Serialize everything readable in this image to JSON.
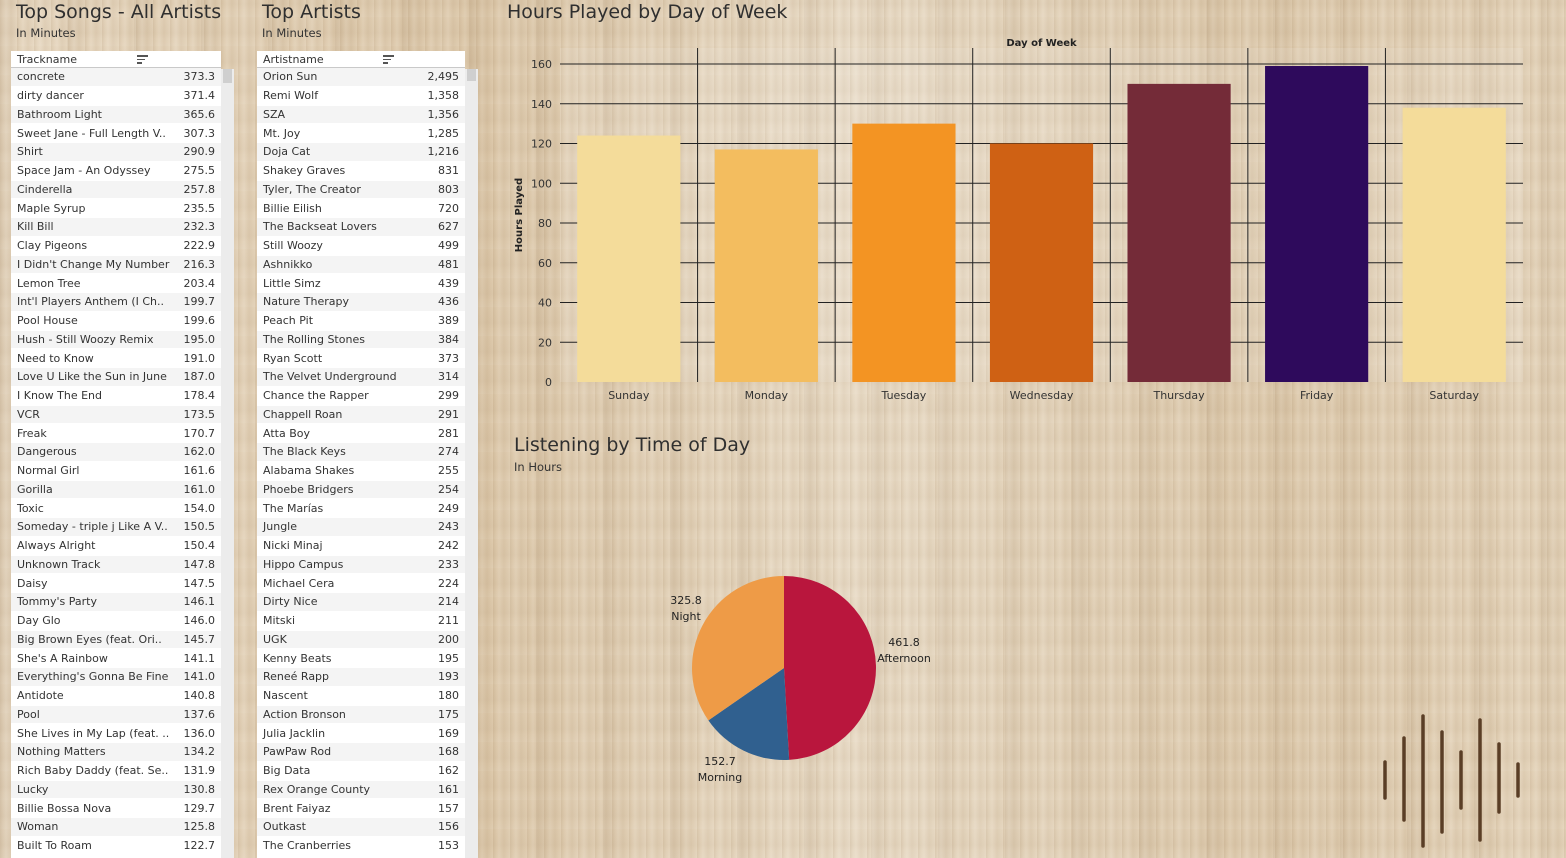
{
  "songs": {
    "title": "Top Songs - All Artists",
    "subtitle": "In Minutes",
    "column": "Trackname",
    "rows": [
      {
        "name": "concrete",
        "value": "373.3"
      },
      {
        "name": "dirty dancer",
        "value": "371.4"
      },
      {
        "name": "Bathroom Light",
        "value": "365.6"
      },
      {
        "name": "Sweet Jane - Full Length V..",
        "value": "307.3"
      },
      {
        "name": "Shirt",
        "value": "290.9"
      },
      {
        "name": "Space Jam - An Odyssey",
        "value": "275.5"
      },
      {
        "name": "Cinderella",
        "value": "257.8"
      },
      {
        "name": "Maple Syrup",
        "value": "235.5"
      },
      {
        "name": "Kill Bill",
        "value": "232.3"
      },
      {
        "name": "Clay Pigeons",
        "value": "222.9"
      },
      {
        "name": "I Didn't Change My Number",
        "value": "216.3"
      },
      {
        "name": "Lemon Tree",
        "value": "203.4"
      },
      {
        "name": "Int'l Players Anthem (I Ch..",
        "value": "199.7"
      },
      {
        "name": "Pool House",
        "value": "199.6"
      },
      {
        "name": "Hush - Still Woozy Remix",
        "value": "195.0"
      },
      {
        "name": "Need to Know",
        "value": "191.0"
      },
      {
        "name": "Love U Like the Sun in June",
        "value": "187.0"
      },
      {
        "name": "I Know The End",
        "value": "178.4"
      },
      {
        "name": "VCR",
        "value": "173.5"
      },
      {
        "name": "Freak",
        "value": "170.7"
      },
      {
        "name": "Dangerous",
        "value": "162.0"
      },
      {
        "name": "Normal Girl",
        "value": "161.6"
      },
      {
        "name": "Gorilla",
        "value": "161.0"
      },
      {
        "name": "Toxic",
        "value": "154.0"
      },
      {
        "name": "Someday - triple j Like A V..",
        "value": "150.5"
      },
      {
        "name": "Always Alright",
        "value": "150.4"
      },
      {
        "name": "Unknown Track",
        "value": "147.8"
      },
      {
        "name": "Daisy",
        "value": "147.5"
      },
      {
        "name": "Tommy's Party",
        "value": "146.1"
      },
      {
        "name": "Day Glo",
        "value": "146.0"
      },
      {
        "name": "Big Brown Eyes (feat. Ori..",
        "value": "145.7"
      },
      {
        "name": "She's A Rainbow",
        "value": "141.1"
      },
      {
        "name": "Everything's Gonna Be Fine",
        "value": "141.0"
      },
      {
        "name": "Antidote",
        "value": "140.8"
      },
      {
        "name": "Pool",
        "value": "137.6"
      },
      {
        "name": "She Lives in My Lap (feat. ..",
        "value": "136.0"
      },
      {
        "name": "Nothing Matters",
        "value": "134.2"
      },
      {
        "name": "Rich Baby Daddy (feat. Se..",
        "value": "131.9"
      },
      {
        "name": "Lucky",
        "value": "130.8"
      },
      {
        "name": "Billie Bossa Nova",
        "value": "129.7"
      },
      {
        "name": "Woman",
        "value": "125.8"
      },
      {
        "name": "Built To Roam",
        "value": "122.7"
      }
    ]
  },
  "artists": {
    "title": "Top Artists",
    "subtitle": "In Minutes",
    "column": "Artistname",
    "rows": [
      {
        "name": "Orion Sun",
        "value": "2,495"
      },
      {
        "name": "Remi Wolf",
        "value": "1,358"
      },
      {
        "name": "SZA",
        "value": "1,356"
      },
      {
        "name": "Mt. Joy",
        "value": "1,285"
      },
      {
        "name": "Doja Cat",
        "value": "1,216"
      },
      {
        "name": "Shakey Graves",
        "value": "831"
      },
      {
        "name": "Tyler, The Creator",
        "value": "803"
      },
      {
        "name": "Billie Eilish",
        "value": "720"
      },
      {
        "name": "The Backseat Lovers",
        "value": "627"
      },
      {
        "name": "Still Woozy",
        "value": "499"
      },
      {
        "name": "Ashnikko",
        "value": "481"
      },
      {
        "name": "Little Simz",
        "value": "439"
      },
      {
        "name": "Nature Therapy",
        "value": "436"
      },
      {
        "name": "Peach Pit",
        "value": "389"
      },
      {
        "name": "The Rolling Stones",
        "value": "384"
      },
      {
        "name": "Ryan Scott",
        "value": "373"
      },
      {
        "name": "The Velvet Underground",
        "value": "314"
      },
      {
        "name": "Chance the Rapper",
        "value": "299"
      },
      {
        "name": "Chappell Roan",
        "value": "291"
      },
      {
        "name": "Atta Boy",
        "value": "281"
      },
      {
        "name": "The Black Keys",
        "value": "274"
      },
      {
        "name": "Alabama Shakes",
        "value": "255"
      },
      {
        "name": "Phoebe Bridgers",
        "value": "254"
      },
      {
        "name": "The Marías",
        "value": "249"
      },
      {
        "name": "Jungle",
        "value": "243"
      },
      {
        "name": "Nicki Minaj",
        "value": "242"
      },
      {
        "name": "Hippo Campus",
        "value": "233"
      },
      {
        "name": "Michael Cera",
        "value": "224"
      },
      {
        "name": "Dirty Nice",
        "value": "214"
      },
      {
        "name": "Mitski",
        "value": "211"
      },
      {
        "name": "UGK",
        "value": "200"
      },
      {
        "name": "Kenny Beats",
        "value": "195"
      },
      {
        "name": "Reneé Rapp",
        "value": "193"
      },
      {
        "name": "Nascent",
        "value": "180"
      },
      {
        "name": "Action Bronson",
        "value": "175"
      },
      {
        "name": "Julia Jacklin",
        "value": "169"
      },
      {
        "name": "PawPaw Rod",
        "value": "168"
      },
      {
        "name": "Big Data",
        "value": "162"
      },
      {
        "name": "Rex Orange County",
        "value": "161"
      },
      {
        "name": "Brent Faiyaz",
        "value": "157"
      },
      {
        "name": "Outkast",
        "value": "156"
      },
      {
        "name": "The Cranberries",
        "value": "153"
      }
    ]
  },
  "chart_data": [
    {
      "type": "bar",
      "title": "Hours Played by Day of Week",
      "xlabel": "Day of Week",
      "ylabel": "Hours Played",
      "ylim": [
        0,
        160
      ],
      "yticks": [
        0,
        20,
        40,
        60,
        80,
        100,
        120,
        140,
        160
      ],
      "grid": true,
      "categories": [
        "Sunday",
        "Monday",
        "Tuesday",
        "Wednesday",
        "Thursday",
        "Friday",
        "Saturday"
      ],
      "values": [
        124,
        117,
        130,
        120,
        150,
        159,
        138
      ],
      "colors": [
        "#f4dc9a",
        "#f3bd5f",
        "#f39423",
        "#cf6114",
        "#742b38",
        "#2e0a5c",
        "#f4dc9a"
      ]
    },
    {
      "type": "pie",
      "title": "Listening by Time of Day",
      "subtitle": "In Hours",
      "slices": [
        {
          "label": "Afternoon",
          "value": 461.8,
          "display": "461.8",
          "color": "#b9163d"
        },
        {
          "label": "Morning",
          "value": 152.7,
          "display": "152.7",
          "color": "#30608f"
        },
        {
          "label": "Night",
          "value": 325.8,
          "display": "325.8",
          "color": "#ee9b47"
        }
      ]
    }
  ]
}
